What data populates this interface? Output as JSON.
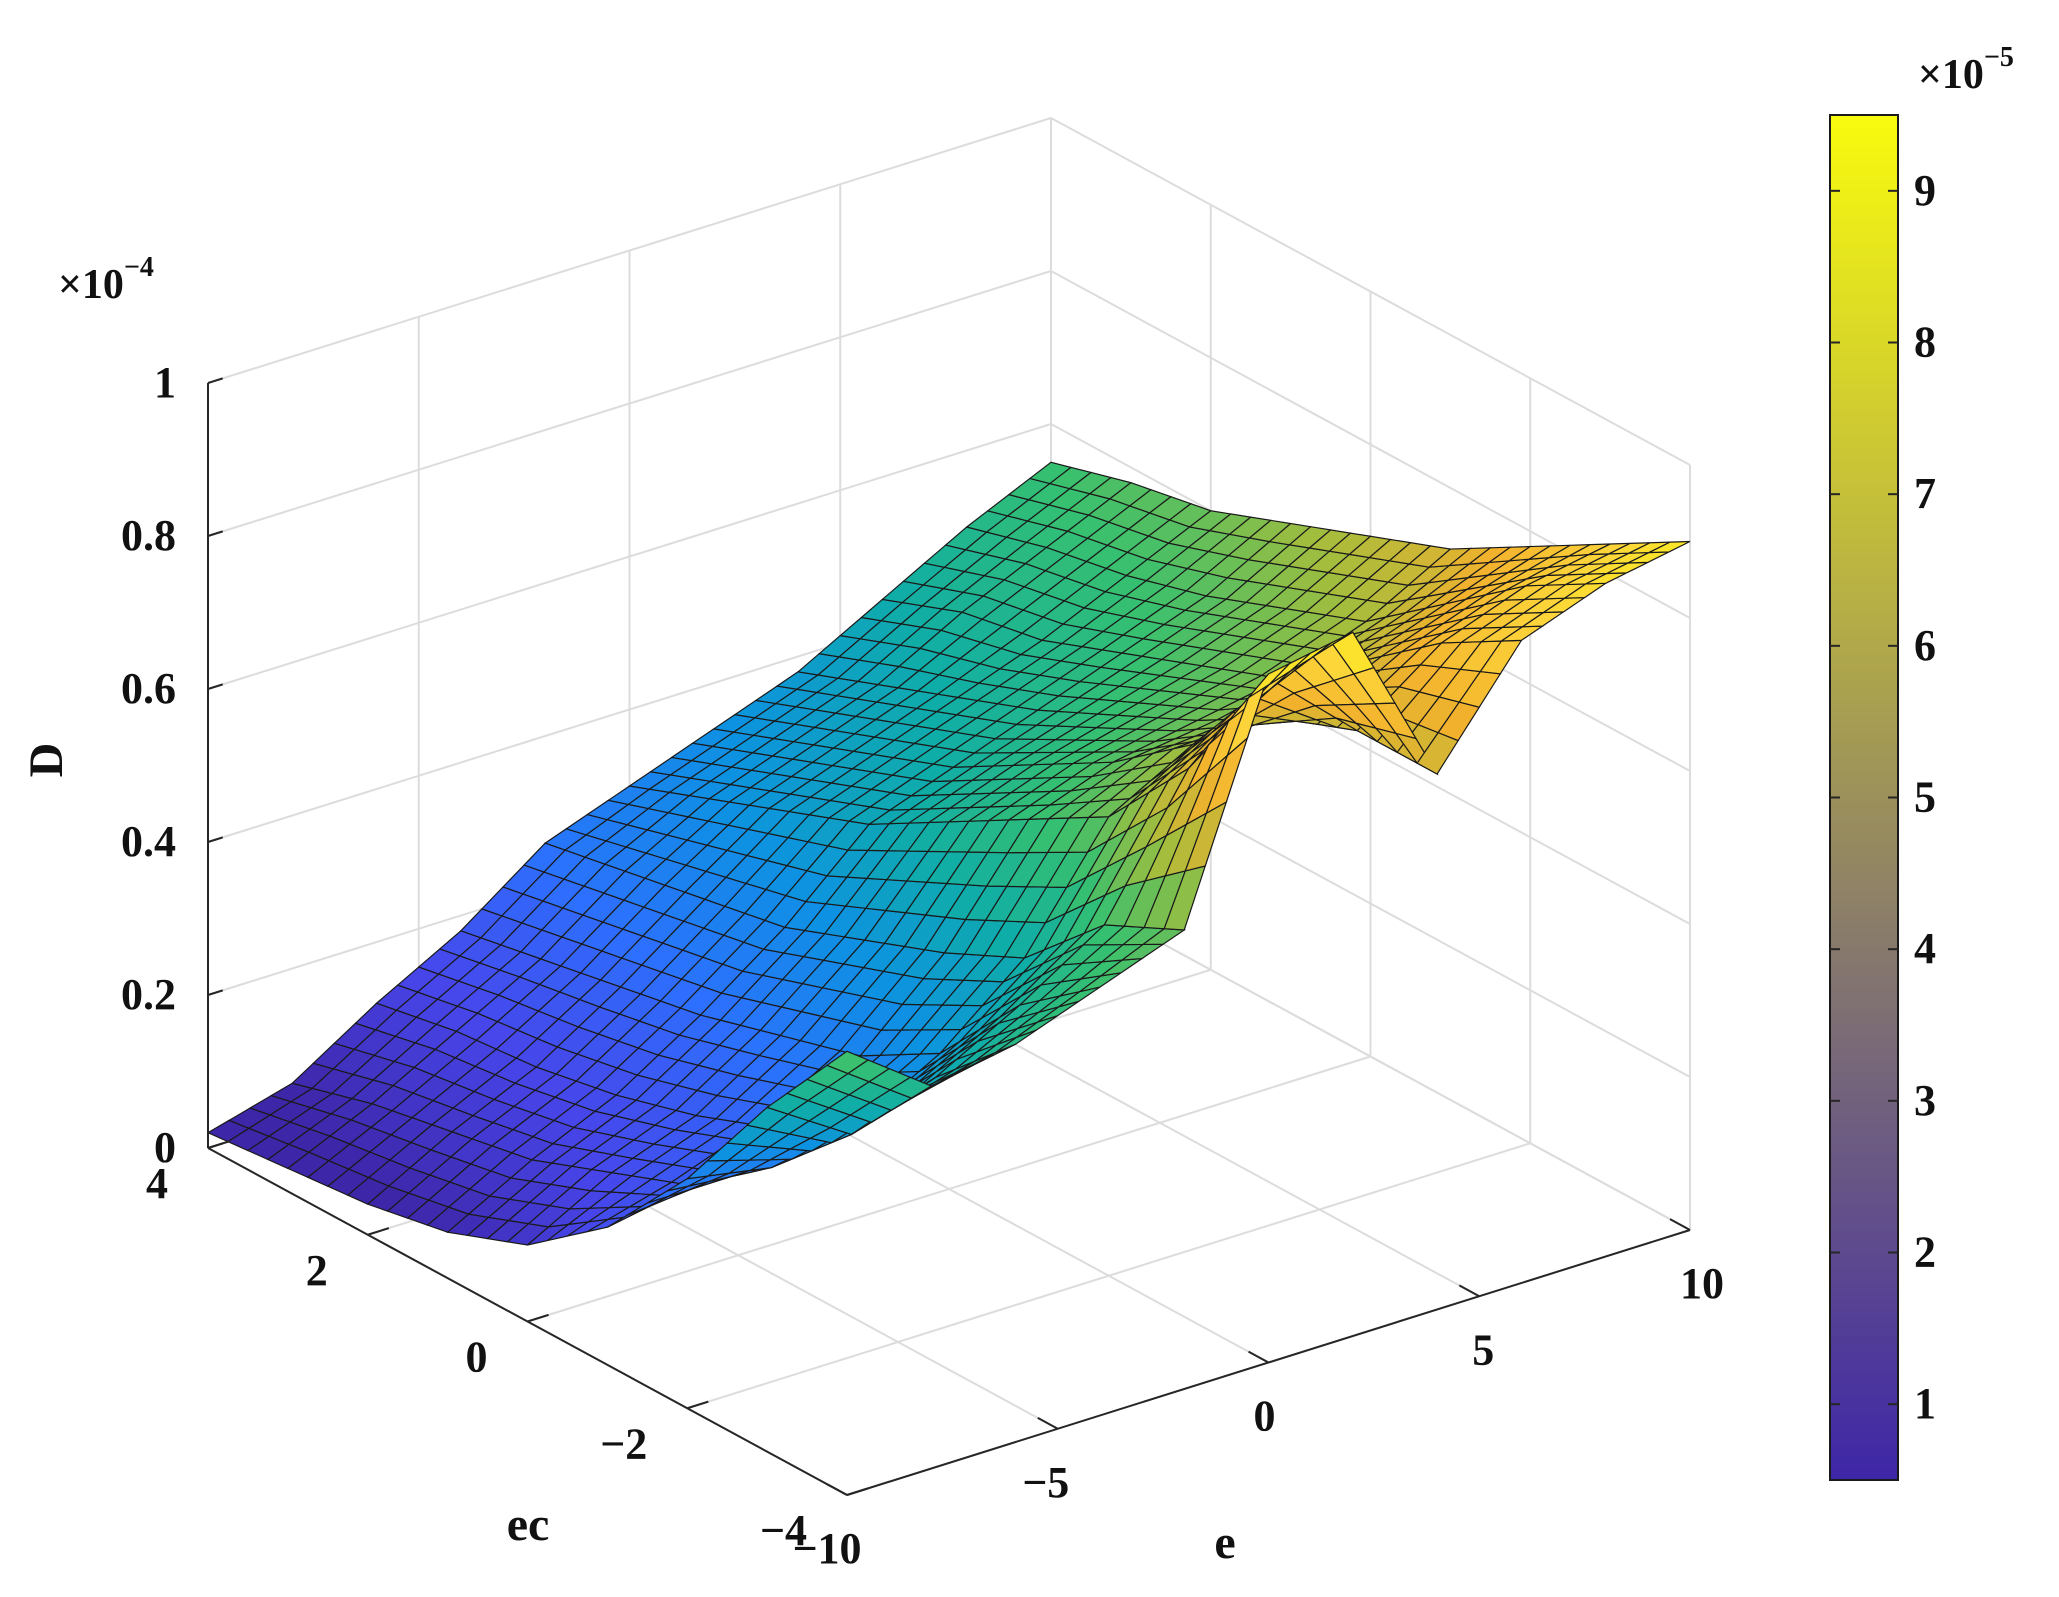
{
  "chart_data": {
    "type": "surface",
    "title": "",
    "xlabel": "e",
    "ylabel": "ec",
    "zlabel": "D",
    "x_ticks": [
      "−10",
      "−5",
      "0",
      "5",
      "10"
    ],
    "y_ticks": [
      "−4",
      "−2",
      "0",
      "2",
      "4"
    ],
    "z_ticks": [
      "0",
      "0.2",
      "0.4",
      "0.6",
      "0.8",
      "1"
    ],
    "z_multiplier": "×10",
    "z_multiplier_exp": "−4",
    "xlim": [
      -10,
      10
    ],
    "ylim": [
      -4,
      4
    ],
    "zlim": [
      0,
      1
    ],
    "z_unit_scale": 0.0001,
    "grid": true,
    "colormap": "parula",
    "colormap_stops": [
      "#3e26a8",
      "#4746eb",
      "#2c70fe",
      "#0d92e2",
      "#0fada8",
      "#36c070",
      "#a3bd3d",
      "#f2b12d",
      "#fdd63a",
      "#f9fb0e"
    ],
    "colorbar": {
      "location": "right",
      "ticks": [
        "1",
        "2",
        "3",
        "4",
        "5",
        "6",
        "7",
        "8",
        "9"
      ],
      "multiplier": "×10",
      "multiplier_exp": "−5",
      "range": [
        0.5,
        9.5
      ]
    },
    "e_grid": [
      -10,
      -8,
      -6,
      -4,
      -2,
      0,
      2,
      4,
      6,
      8,
      10
    ],
    "ec_grid": [
      -4,
      -3,
      -2,
      -1,
      0,
      1,
      2,
      3,
      4
    ],
    "surface_z": [
      [
        0.58,
        0.5,
        0.52,
        0.56,
        0.6,
        0.9,
        0.92,
        0.7,
        0.84,
        0.88,
        0.9
      ],
      [
        0.45,
        0.38,
        0.42,
        0.48,
        0.55,
        0.72,
        0.8,
        0.7,
        0.78,
        0.82,
        0.84
      ],
      [
        0.3,
        0.28,
        0.3,
        0.36,
        0.45,
        0.6,
        0.66,
        0.66,
        0.7,
        0.74,
        0.78
      ],
      [
        0.18,
        0.2,
        0.24,
        0.3,
        0.4,
        0.54,
        0.58,
        0.6,
        0.62,
        0.66,
        0.72
      ],
      [
        0.1,
        0.16,
        0.2,
        0.27,
        0.36,
        0.48,
        0.52,
        0.55,
        0.58,
        0.62,
        0.68
      ],
      [
        0.06,
        0.12,
        0.17,
        0.24,
        0.32,
        0.42,
        0.46,
        0.5,
        0.54,
        0.58,
        0.64
      ],
      [
        0.04,
        0.1,
        0.15,
        0.22,
        0.3,
        0.38,
        0.42,
        0.46,
        0.5,
        0.55,
        0.6
      ],
      [
        0.03,
        0.08,
        0.14,
        0.2,
        0.28,
        0.34,
        0.38,
        0.42,
        0.48,
        0.53,
        0.58
      ],
      [
        0.02,
        0.05,
        0.12,
        0.18,
        0.26,
        0.3,
        0.34,
        0.38,
        0.44,
        0.5,
        0.55
      ]
    ]
  }
}
